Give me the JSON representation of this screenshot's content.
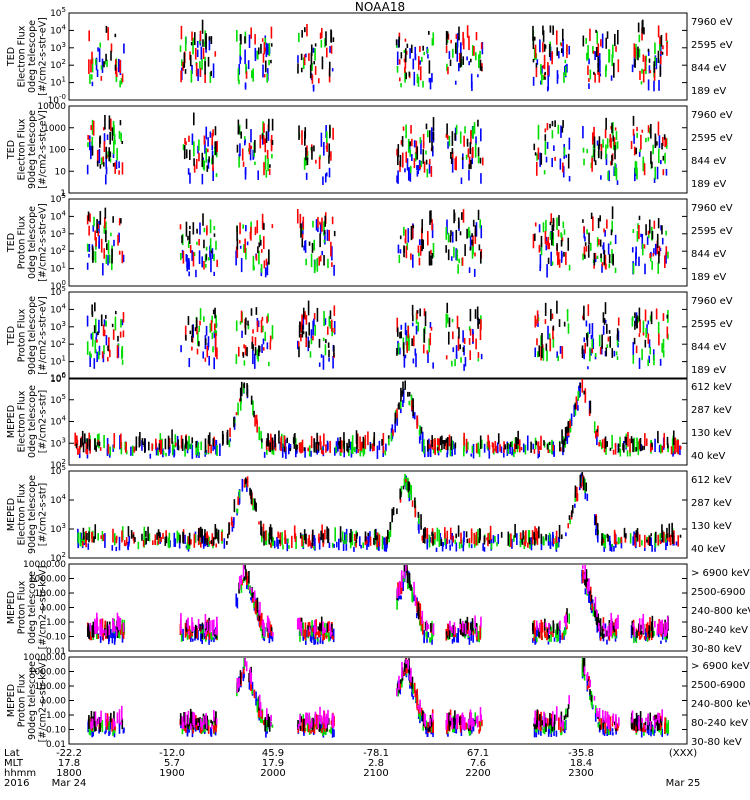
{
  "title": "NOAA18",
  "colors": {
    "black": "#000000",
    "red": "#ff0000",
    "green": "#00dd00",
    "blue": "#0000ff",
    "magenta": "#ff00ff"
  },
  "chart_data": [
    {
      "type": "scatter",
      "ylabel": [
        "TED",
        "Electron Flux",
        "0deg telescope",
        "[#/cm2-s-str-eV]"
      ],
      "log": true,
      "ytick_labels": [
        "10^-0",
        "10^1",
        "10^2",
        "10^3",
        "10^4",
        "10^5"
      ],
      "legend": [
        {
          "label": "7960 eV",
          "color": "#000000"
        },
        {
          "label": "2595 eV",
          "color": "#ff0000"
        },
        {
          "label": "844 eV",
          "color": "#00dd00"
        },
        {
          "label": "189 eV",
          "color": "#0000ff"
        }
      ]
    },
    {
      "type": "scatter",
      "ylabel": [
        "TED",
        "Electron Flux",
        "90deg telescope",
        "[#/cm2-s-str-eV]"
      ],
      "log": true,
      "ytick_labels": [
        "1",
        "10",
        "100",
        "1000",
        "10000"
      ],
      "legend": [
        {
          "label": "7960 eV",
          "color": "#000000"
        },
        {
          "label": "2595 eV",
          "color": "#ff0000"
        },
        {
          "label": "844 eV",
          "color": "#00dd00"
        },
        {
          "label": "189 eV",
          "color": "#0000ff"
        }
      ]
    },
    {
      "type": "scatter",
      "ylabel": [
        "TED",
        "Proton Flux",
        "0deg telescope",
        "[#/cm2-s-str-eV]"
      ],
      "log": true,
      "ytick_labels": [
        "10^0",
        "10^1",
        "10^2",
        "10^3",
        "10^4",
        "10^5"
      ],
      "legend": [
        {
          "label": "7960 eV",
          "color": "#000000"
        },
        {
          "label": "2595 eV",
          "color": "#ff0000"
        },
        {
          "label": "844 eV",
          "color": "#00dd00"
        },
        {
          "label": "189 eV",
          "color": "#0000ff"
        }
      ]
    },
    {
      "type": "scatter",
      "ylabel": [
        "TED",
        "Proton Flux",
        "90deg telescope",
        "[#/cm2-s-str-eV]"
      ],
      "log": true,
      "ytick_labels": [
        "10^0",
        "10^1",
        "10^2",
        "10^3",
        "10^4",
        "10^5"
      ],
      "legend": [
        {
          "label": "7960 eV",
          "color": "#000000"
        },
        {
          "label": "2595 eV",
          "color": "#ff0000"
        },
        {
          "label": "844 eV",
          "color": "#00dd00"
        },
        {
          "label": "189 eV",
          "color": "#0000ff"
        }
      ]
    },
    {
      "type": "scatter",
      "ylabel": [
        "MEPED",
        "Electron Flux",
        "0deg telescope",
        "[#/cm2-s-str]"
      ],
      "log": true,
      "ytick_labels": [
        "10^2",
        "10^3",
        "10^4",
        "10^5",
        "10^6"
      ],
      "legend": [
        {
          "label": "612 keV",
          "color": "#000000"
        },
        {
          "label": "287 keV",
          "color": "#ff0000"
        },
        {
          "label": "130 keV",
          "color": "#00dd00"
        },
        {
          "label": "40 keV",
          "color": "#0000ff"
        }
      ]
    },
    {
      "type": "scatter",
      "ylabel": [
        "MEPED",
        "Electron Flux",
        "90deg telescope",
        "[#/cm2-s-str]"
      ],
      "log": true,
      "ytick_labels": [
        "10^2",
        "10^3",
        "10^4",
        "10^5"
      ],
      "legend": [
        {
          "label": "612 keV",
          "color": "#000000"
        },
        {
          "label": "287 keV",
          "color": "#ff0000"
        },
        {
          "label": "130 keV",
          "color": "#00dd00"
        },
        {
          "label": "40 keV",
          "color": "#0000ff"
        }
      ]
    },
    {
      "type": "scatter",
      "ylabel": [
        "MEPED",
        "Proton Flux",
        "0deg telescope",
        "[#/cm2-s-str-keV]"
      ],
      "log": true,
      "ytick_labels": [
        "0.01",
        "0.10",
        "1.00",
        "10.00",
        "100.00",
        "1000.00",
        "10000.00"
      ],
      "legend": [
        {
          "label": "> 6900 keV",
          "color": "#ff00ff"
        },
        {
          "label": "2500-6900",
          "color": "#000000"
        },
        {
          "label": "240-800 keV",
          "color": "#ff0000"
        },
        {
          "label": "80-240 keV",
          "color": "#00dd00"
        },
        {
          "label": "30-80 keV",
          "color": "#0000ff"
        }
      ]
    },
    {
      "type": "scatter",
      "ylabel": [
        "MEPED",
        "Proton Flux",
        "90deg telescope",
        "[#/cm2-s-str-keV]"
      ],
      "log": true,
      "ytick_labels": [
        "0.01",
        "0.10",
        "1.00",
        "10.00",
        "100.00",
        "1000.00",
        "10000.00"
      ],
      "legend": [
        {
          "label": "> 6900 keV",
          "color": "#ff00ff"
        },
        {
          "label": "2500-6900",
          "color": "#000000"
        },
        {
          "label": "240-800 keV",
          "color": "#ff0000"
        },
        {
          "label": "80-240 keV",
          "color": "#00dd00"
        },
        {
          "label": "30-80 keV",
          "color": "#0000ff"
        }
      ]
    }
  ],
  "x_axis": {
    "row_labels": [
      "Lat",
      "MLT",
      "hhmm",
      "2016"
    ],
    "ticks": [
      {
        "lat": "-22.2",
        "mlt": "17.8",
        "hhmm": "1800",
        "date": "Mar 24"
      },
      {
        "lat": "-12.0",
        "mlt": "5.7",
        "hhmm": "1900",
        "date": ""
      },
      {
        "lat": "45.9",
        "mlt": "17.9",
        "hhmm": "2000",
        "date": ""
      },
      {
        "lat": "-78.1",
        "mlt": "2.8",
        "hhmm": "2100",
        "date": ""
      },
      {
        "lat": "67.1",
        "mlt": "7.6",
        "hhmm": "2200",
        "date": ""
      },
      {
        "lat": "-35.8",
        "mlt": "18.4",
        "hhmm": "2300",
        "date": ""
      },
      {
        "lat": "(XXX)",
        "mlt": "",
        "hhmm": "",
        "date": "Mar 25"
      }
    ]
  }
}
